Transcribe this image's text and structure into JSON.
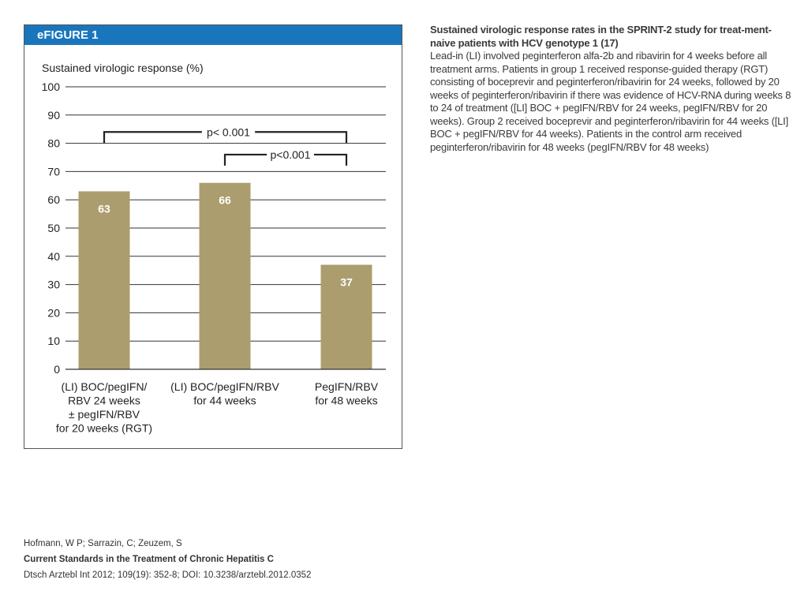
{
  "figure": {
    "label": "eFIGURE 1",
    "header_color": "#1a76bc"
  },
  "chart_data": {
    "type": "bar",
    "ylabel": "Sustained virologic response (%)",
    "ylim": [
      0,
      100
    ],
    "yticks": [
      0,
      10,
      20,
      30,
      40,
      50,
      60,
      70,
      80,
      90,
      100
    ],
    "grid": true,
    "bar_color": "#ac9d6e",
    "value_label_color": "#ffffff",
    "categories": [
      [
        "(LI) BOC/pegIFN/",
        "RBV 24 weeks",
        "± pegIFN/RBV",
        "for 20 weeks (RGT)"
      ],
      [
        "(LI) BOC/pegIFN/RBV",
        "for 44 weeks"
      ],
      [
        "PegIFN/RBV",
        "for 48 weeks"
      ]
    ],
    "values": [
      63,
      66,
      37
    ],
    "value_labels": [
      "63",
      "66",
      "37"
    ],
    "annotations": [
      {
        "text": "p< 0.001",
        "from": 0,
        "to": 2,
        "y": 84
      },
      {
        "text": "p<0.001",
        "from": 1,
        "to": 2,
        "y": 76
      }
    ]
  },
  "caption": {
    "title": "Sustained virologic response rates in the SPRINT-2 study for treat-ment-naive patients with HCV genotype 1 (17)",
    "body": "Lead-in (LI) involved peginterferon alfa-2b and ribavirin for 4 weeks before all treatment arms. Patients in group 1 received response-guided therapy (RGT) consisting of boceprevir and peginterferon/ribavirin for 24 weeks, followed by 20 weeks of peginterferon/ribavirin if there was evidence of HCV-RNA during weeks 8 to 24 of treatment ([LI] BOC + pegIFN/RBV for 24 weeks, pegIFN/RBV for 20 weeks). Group 2 received boceprevir and peginterferon/ribavirin for 44 weeks ([LI] BOC + pegIFN/RBV for 44 weeks). Patients in the control arm received peginterferon/ribavirin for 48 weeks (pegIFN/RBV for 48 weeks)"
  },
  "citation": {
    "authors": "Hofmann, W P; Sarrazin, C; Zeuzem, S",
    "title": "Current Standards in the Treatment of Chronic Hepatitis C",
    "source": "Dtsch Arztebl Int 2012; 109(19): 352-8; DOI: 10.3238/arztebl.2012.0352"
  }
}
